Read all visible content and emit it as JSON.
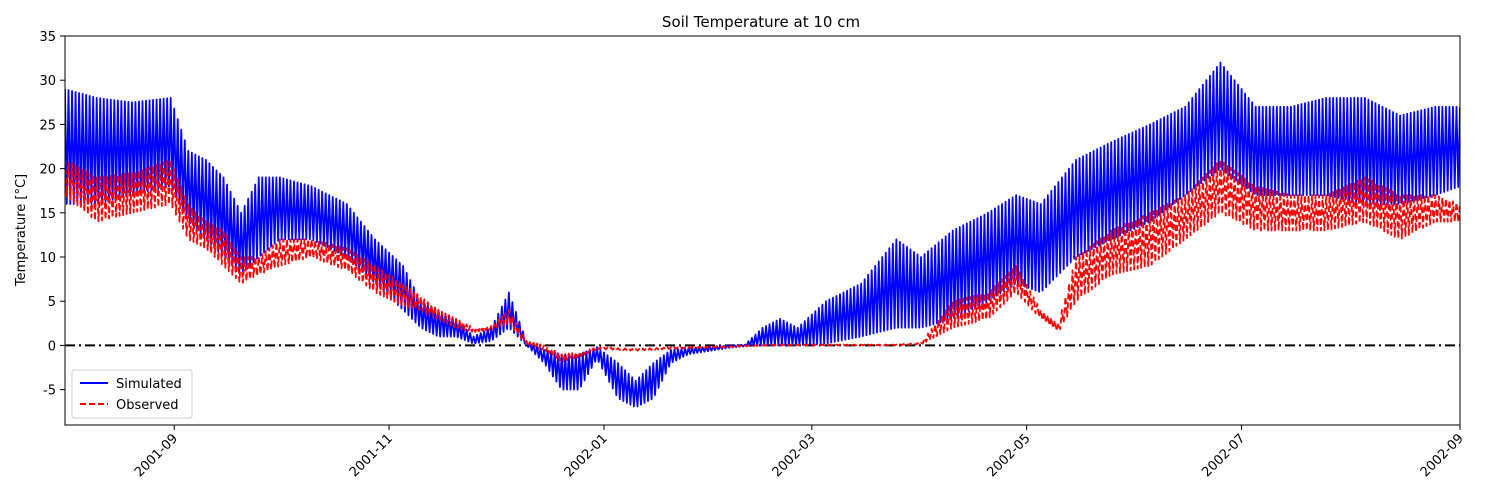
{
  "chart_data": {
    "type": "line",
    "title": "Soil Temperature at 10 cm",
    "xlabel": "",
    "ylabel": "Temperature [°C]",
    "xlim": [
      "2001-08-01",
      "2002-09-01"
    ],
    "ylim": [
      -9,
      35
    ],
    "x_ticks": [
      "2001-09",
      "2001-11",
      "2002-01",
      "2002-03",
      "2002-05",
      "2002-07",
      "2002-09"
    ],
    "y_ticks": [
      -5,
      0,
      5,
      10,
      15,
      20,
      25,
      30,
      35
    ],
    "reference_line": {
      "y": 0,
      "color": "#000000",
      "style": "dash-dot"
    },
    "legend": {
      "position": "lower-left",
      "entries": [
        "Simulated",
        "Observed"
      ]
    },
    "grid": false,
    "series_style": "daily-oscillating; values below are daily [min, max] envelopes",
    "series": [
      {
        "name": "Simulated",
        "color": "#0000ff",
        "style": "solid",
        "points": [
          [
            "2001-08-01",
            16,
            29
          ],
          [
            "2001-08-10",
            16,
            28
          ],
          [
            "2001-08-20",
            17,
            27.5
          ],
          [
            "2001-08-31",
            18,
            28
          ],
          [
            "2001-09-05",
            14,
            22
          ],
          [
            "2001-09-10",
            12,
            21
          ],
          [
            "2001-09-15",
            10,
            19
          ],
          [
            "2001-09-20",
            8,
            15
          ],
          [
            "2001-09-25",
            10,
            19
          ],
          [
            "2001-10-01",
            12,
            19
          ],
          [
            "2001-10-10",
            12,
            18
          ],
          [
            "2001-10-20",
            10,
            16
          ],
          [
            "2001-10-28",
            7,
            12
          ],
          [
            "2001-11-05",
            4,
            9
          ],
          [
            "2001-11-10",
            2,
            5
          ],
          [
            "2001-11-15",
            1,
            4
          ],
          [
            "2001-11-20",
            1,
            3
          ],
          [
            "2001-11-25",
            0.2,
            1
          ],
          [
            "2001-11-30",
            0.5,
            2
          ],
          [
            "2001-12-05",
            2,
            6
          ],
          [
            "2001-12-10",
            0,
            0.5
          ],
          [
            "2001-12-15",
            -2,
            -0.5
          ],
          [
            "2001-12-20",
            -5,
            -1
          ],
          [
            "2001-12-25",
            -5,
            -1
          ],
          [
            "2001-12-30",
            -1.5,
            -0.2
          ],
          [
            "2002-01-05",
            -6,
            -2
          ],
          [
            "2002-01-10",
            -7,
            -4
          ],
          [
            "2002-01-15",
            -6,
            -2
          ],
          [
            "2002-01-20",
            -2,
            -0.5
          ],
          [
            "2002-01-25",
            -1,
            -0.3
          ],
          [
            "2002-02-05",
            -0.3,
            0
          ],
          [
            "2002-02-10",
            -0.1,
            0.1
          ],
          [
            "2002-02-15",
            0,
            2
          ],
          [
            "2002-02-20",
            0,
            3
          ],
          [
            "2002-02-25",
            0,
            2
          ],
          [
            "2002-03-05",
            0.2,
            5
          ],
          [
            "2002-03-15",
            1,
            7
          ],
          [
            "2002-03-25",
            2,
            12
          ],
          [
            "2002-04-01",
            2,
            10
          ],
          [
            "2002-04-10",
            3,
            13
          ],
          [
            "2002-04-20",
            5,
            15
          ],
          [
            "2002-04-28",
            7,
            17
          ],
          [
            "2002-05-05",
            6,
            16
          ],
          [
            "2002-05-15",
            10,
            21
          ],
          [
            "2002-05-25",
            12,
            23
          ],
          [
            "2002-06-05",
            14,
            25
          ],
          [
            "2002-06-15",
            17,
            27
          ],
          [
            "2002-06-25",
            20,
            32
          ],
          [
            "2002-07-05",
            17,
            27
          ],
          [
            "2002-07-15",
            17,
            27
          ],
          [
            "2002-07-25",
            17,
            28
          ],
          [
            "2002-08-05",
            16,
            28
          ],
          [
            "2002-08-15",
            16,
            26
          ],
          [
            "2002-08-25",
            17,
            27
          ],
          [
            "2002-09-01",
            18,
            27
          ]
        ]
      },
      {
        "name": "Observed",
        "color": "#ff0000",
        "style": "dashed",
        "points": [
          [
            "2001-08-01",
            17,
            21
          ],
          [
            "2001-08-10",
            14,
            19
          ],
          [
            "2001-08-20",
            15,
            19.5
          ],
          [
            "2001-08-31",
            16,
            21
          ],
          [
            "2001-09-05",
            12,
            16
          ],
          [
            "2001-09-10",
            11,
            14
          ],
          [
            "2001-09-15",
            9,
            13
          ],
          [
            "2001-09-20",
            7,
            10
          ],
          [
            "2001-09-25",
            8,
            10
          ],
          [
            "2001-10-01",
            9,
            12
          ],
          [
            "2001-10-10",
            10,
            12
          ],
          [
            "2001-10-20",
            8.5,
            11
          ],
          [
            "2001-10-28",
            6,
            9
          ],
          [
            "2001-11-05",
            4.5,
            7
          ],
          [
            "2001-11-10",
            4,
            5.5
          ],
          [
            "2001-11-15",
            3,
            4
          ],
          [
            "2001-11-20",
            2,
            3
          ],
          [
            "2001-11-25",
            1.5,
            2
          ],
          [
            "2001-11-30",
            1.8,
            2.2
          ],
          [
            "2001-12-05",
            2.5,
            4
          ],
          [
            "2001-12-10",
            0,
            0.5
          ],
          [
            "2001-12-15",
            -0.5,
            0
          ],
          [
            "2001-12-20",
            -1.8,
            -1
          ],
          [
            "2001-12-25",
            -1.3,
            -0.8
          ],
          [
            "2001-12-30",
            -0.4,
            -0.2
          ],
          [
            "2002-01-05",
            -0.5,
            -0.3
          ],
          [
            "2002-01-10",
            -0.6,
            -0.4
          ],
          [
            "2002-01-15",
            -0.5,
            -0.3
          ],
          [
            "2002-01-20",
            -0.4,
            -0.2
          ],
          [
            "2002-01-25",
            -0.3,
            -0.2
          ],
          [
            "2002-02-05",
            -0.2,
            -0.1
          ],
          [
            "2002-02-10",
            -0.1,
            0
          ],
          [
            "2002-02-15",
            0,
            0
          ],
          [
            "2002-02-20",
            0,
            0.1
          ],
          [
            "2002-02-25",
            0,
            0.1
          ],
          [
            "2002-03-05",
            0,
            0.1
          ],
          [
            "2002-03-15",
            0,
            0.1
          ],
          [
            "2002-03-25",
            0,
            0.1
          ],
          [
            "2002-04-01",
            0.1,
            0.3
          ],
          [
            "2002-04-10",
            2,
            5
          ],
          [
            "2002-04-20",
            3,
            6
          ],
          [
            "2002-04-28",
            6,
            9
          ],
          [
            "2002-05-05",
            3,
            4
          ],
          [
            "2002-05-10",
            1.5,
            2.5
          ],
          [
            "2002-05-15",
            5,
            10
          ],
          [
            "2002-05-25",
            8,
            13
          ],
          [
            "2002-06-05",
            9,
            15
          ],
          [
            "2002-06-15",
            12,
            17
          ],
          [
            "2002-06-25",
            15,
            21
          ],
          [
            "2002-07-05",
            13,
            18
          ],
          [
            "2002-07-15",
            13,
            17
          ],
          [
            "2002-07-25",
            13,
            17
          ],
          [
            "2002-08-05",
            14,
            19
          ],
          [
            "2002-08-15",
            12,
            17
          ],
          [
            "2002-08-25",
            14,
            17
          ],
          [
            "2002-09-01",
            14,
            16
          ]
        ]
      }
    ]
  }
}
